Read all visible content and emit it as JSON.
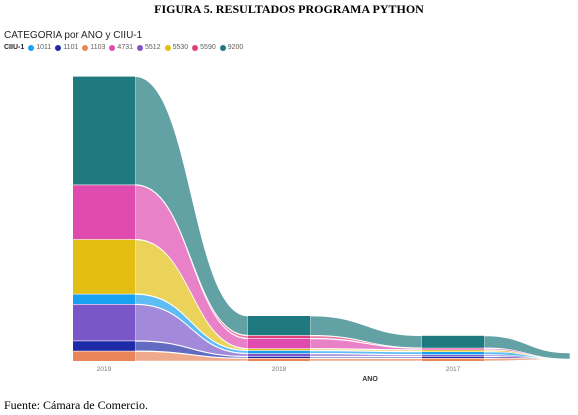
{
  "caption": "FIGURA 5. RESULTADOS PROGRAMA PYTHON",
  "source": "Fuente: Cámara de Comercio.",
  "chart_data": {
    "type": "area",
    "subtype": "ribbon",
    "title": "CATEGORIA por ANO y CIIU-1",
    "legend_title": "CIIU-1",
    "legend_position": "top-left",
    "xlabel": "ANO",
    "ylabel": "",
    "categories": [
      "2019",
      "2018",
      "2017"
    ],
    "series": [
      {
        "name": "1011",
        "color": "#1aa0f0",
        "values": [
          0.8,
          0.2,
          0.2
        ]
      },
      {
        "name": "1101",
        "color": "#1f2aa8",
        "values": [
          0.8,
          0.1,
          0.1
        ]
      },
      {
        "name": "1103",
        "color": "#e8865a",
        "values": [
          0.8,
          0.2,
          0.2
        ]
      },
      {
        "name": "4731",
        "color": "#e04bb0",
        "values": [
          4.5,
          0.8,
          0.1
        ]
      },
      {
        "name": "5512",
        "color": "#7a57c8",
        "values": [
          3.0,
          0.2,
          0.1
        ]
      },
      {
        "name": "5530",
        "color": "#e2bf12",
        "values": [
          4.5,
          0.1,
          0.1
        ]
      },
      {
        "name": "5590",
        "color": "#e0417a",
        "values": [
          0.0,
          0.2,
          0.0
        ]
      },
      {
        "name": "9200",
        "color": "#1f7a7f",
        "values": [
          9.0,
          1.6,
          1.0
        ]
      }
    ],
    "stack_order_bottom_to_top": [
      "1103",
      "1101",
      "5512",
      "1011",
      "5530",
      "4731",
      "5590",
      "9200"
    ],
    "grid": false
  }
}
